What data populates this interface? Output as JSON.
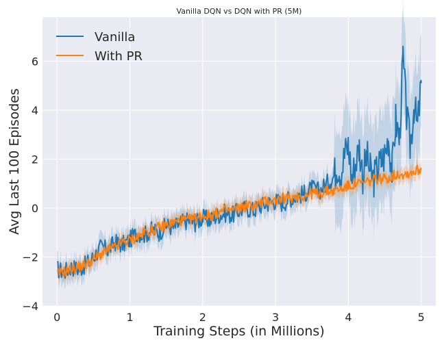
{
  "chart_data": {
    "type": "line",
    "title": "Vanilla DQN vs DQN with PR (5M)",
    "xlabel": "Training Steps (in Millions)",
    "ylabel": "Avg Last 100 Episodes",
    "xlim": [
      -0.2,
      5.2
    ],
    "ylim": [
      -4,
      7.8
    ],
    "xticks": [
      0,
      1,
      2,
      3,
      4,
      5
    ],
    "yticks": [
      -4,
      -2,
      0,
      2,
      4,
      6
    ],
    "xtick_labels": [
      "0",
      "1",
      "2",
      "3",
      "4",
      "5"
    ],
    "ytick_labels": [
      "−4",
      "−2",
      "0",
      "2",
      "4",
      "6"
    ],
    "grid": true,
    "legend_position": "upper-left",
    "series": [
      {
        "name": "Vanilla",
        "color": "#1f77b4",
        "x": [
          0,
          0.1,
          0.2,
          0.3,
          0.4,
          0.5,
          0.6,
          0.7,
          0.8,
          0.9,
          1.0,
          1.1,
          1.2,
          1.3,
          1.4,
          1.5,
          1.6,
          1.7,
          1.8,
          1.9,
          2.0,
          2.1,
          2.2,
          2.3,
          2.4,
          2.5,
          2.6,
          2.7,
          2.8,
          2.9,
          3.0,
          3.1,
          3.2,
          3.3,
          3.4,
          3.5,
          3.6,
          3.7,
          3.8,
          3.85,
          3.9,
          3.95,
          4.0,
          4.05,
          4.1,
          4.15,
          4.2,
          4.25,
          4.3,
          4.35,
          4.4,
          4.45,
          4.5,
          4.55,
          4.6,
          4.65,
          4.7,
          4.75,
          4.8,
          4.85,
          4.9,
          4.95,
          5.0
        ],
        "y": [
          -2.5,
          -2.6,
          -2.4,
          -2.5,
          -2.3,
          -2.0,
          -1.6,
          -1.7,
          -1.4,
          -1.5,
          -1.3,
          -1.0,
          -1.1,
          -0.9,
          -1.0,
          -0.7,
          -0.8,
          -0.6,
          -0.5,
          -0.6,
          -0.4,
          -0.5,
          -0.3,
          -0.2,
          -0.3,
          -0.1,
          0.0,
          -0.1,
          0.1,
          0.2,
          0.3,
          0.2,
          0.4,
          0.5,
          0.6,
          0.8,
          0.7,
          1.0,
          1.3,
          1.8,
          1.5,
          2.2,
          2.6,
          1.2,
          1.9,
          2.5,
          1.3,
          2.1,
          1.5,
          1.2,
          1.6,
          1.9,
          2.2,
          2.9,
          1.5,
          3.6,
          2.8,
          6.1,
          3.7,
          2.5,
          4.2,
          3.3,
          5.1
        ]
      },
      {
        "name": "With PR",
        "color": "#ff7f0e",
        "x": [
          0,
          0.1,
          0.2,
          0.3,
          0.4,
          0.5,
          0.6,
          0.7,
          0.8,
          0.9,
          1.0,
          1.1,
          1.2,
          1.3,
          1.4,
          1.5,
          1.6,
          1.7,
          1.8,
          1.9,
          2.0,
          2.1,
          2.2,
          2.3,
          2.4,
          2.5,
          2.6,
          2.7,
          2.8,
          2.9,
          3.0,
          3.1,
          3.2,
          3.3,
          3.4,
          3.5,
          3.6,
          3.7,
          3.8,
          3.9,
          4.0,
          4.1,
          4.2,
          4.3,
          4.4,
          4.5,
          4.6,
          4.7,
          4.8,
          4.9,
          5.0
        ],
        "y": [
          -2.7,
          -2.6,
          -2.5,
          -2.4,
          -2.3,
          -2.1,
          -1.9,
          -1.7,
          -1.6,
          -1.4,
          -1.3,
          -1.2,
          -1.0,
          -0.9,
          -0.8,
          -0.7,
          -0.6,
          -0.5,
          -0.5,
          -0.4,
          -0.3,
          -0.3,
          -0.2,
          -0.1,
          -0.1,
          0.0,
          0.1,
          0.1,
          0.2,
          0.3,
          0.3,
          0.4,
          0.4,
          0.5,
          0.5,
          0.6,
          0.6,
          0.7,
          0.7,
          0.8,
          0.9,
          1.0,
          1.0,
          1.1,
          1.2,
          1.2,
          1.3,
          1.4,
          1.4,
          1.5,
          1.6
        ]
      }
    ]
  }
}
